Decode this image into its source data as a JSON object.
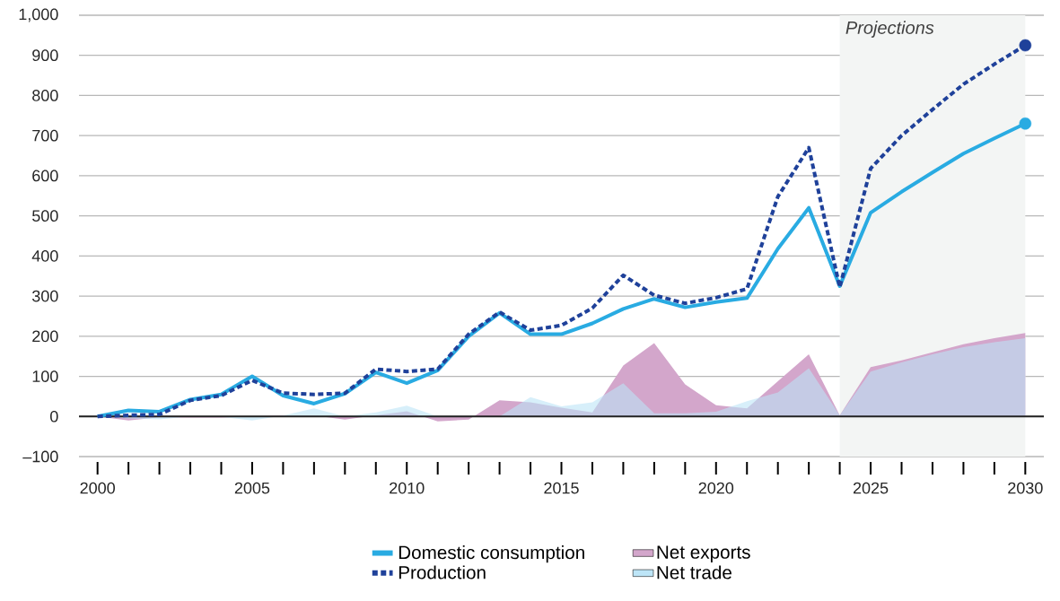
{
  "chart_data": {
    "type": "line",
    "x": [
      2000,
      2001,
      2002,
      2003,
      2004,
      2005,
      2006,
      2007,
      2008,
      2009,
      2010,
      2011,
      2012,
      2013,
      2014,
      2015,
      2016,
      2017,
      2018,
      2019,
      2020,
      2021,
      2022,
      2023,
      2024,
      2025,
      2026,
      2027,
      2028,
      2029,
      2030
    ],
    "series": [
      {
        "name": "Domestic consumption",
        "color": "#29abe2",
        "line_style": "solid",
        "values": [
          0,
          15,
          12,
          42,
          55,
          100,
          52,
          32,
          57,
          110,
          83,
          115,
          200,
          258,
          205,
          205,
          232,
          268,
          293,
          272,
          285,
          295,
          418,
          520,
          325,
          508,
          560,
          608,
          655,
          693,
          730
        ]
      },
      {
        "name": "Production",
        "color": "#1f419a",
        "line_style": "dashed",
        "values": [
          0,
          3,
          5,
          40,
          52,
          90,
          58,
          55,
          58,
          118,
          112,
          118,
          205,
          260,
          215,
          227,
          270,
          352,
          302,
          282,
          296,
          318,
          548,
          670,
          322,
          618,
          700,
          765,
          828,
          878,
          925
        ]
      },
      {
        "name": "Net exports",
        "type": "area",
        "color": "#d3a6cb",
        "values": [
          0,
          -10,
          -2,
          -3,
          -3,
          0,
          2,
          2,
          -8,
          3,
          13,
          -12,
          -8,
          40,
          35,
          22,
          10,
          127,
          183,
          80,
          28,
          20,
          88,
          155,
          3,
          123,
          140,
          160,
          180,
          195,
          208
        ]
      },
      {
        "name": "Net trade",
        "type": "area",
        "color": "#bde5f7",
        "values": [
          0,
          -5,
          -7,
          0,
          -1,
          -10,
          2,
          20,
          0,
          10,
          27,
          0,
          0,
          0,
          48,
          25,
          35,
          83,
          8,
          8,
          12,
          38,
          60,
          120,
          3,
          112,
          135,
          155,
          173,
          185,
          195
        ]
      },
      {
        "type": "scatter",
        "marker": "circle",
        "color": "#29abe2",
        "x": [
          2030
        ],
        "values": [
          730
        ]
      },
      {
        "type": "scatter",
        "marker": "circle",
        "color": "#1f419a",
        "x": [
          2030
        ],
        "values": [
          925
        ]
      }
    ],
    "xlim": [
      1999.4,
      2030.6
    ],
    "xticks": [
      2000,
      {
        "value": 2001,
        "label": null
      },
      {
        "value": 2002,
        "label": null
      },
      {
        "value": 2003,
        "label": null
      },
      {
        "value": 2004,
        "label": null
      },
      2005,
      {
        "value": 2006,
        "label": null
      },
      {
        "value": 2007,
        "label": null
      },
      {
        "value": 2008,
        "label": null
      },
      {
        "value": 2009,
        "label": null
      },
      2010,
      {
        "value": 2011,
        "label": null
      },
      {
        "value": 2012,
        "label": null
      },
      {
        "value": 2013,
        "label": null
      },
      {
        "value": 2014,
        "label": null
      },
      2015,
      {
        "value": 2016,
        "label": null
      },
      {
        "value": 2017,
        "label": null
      },
      {
        "value": 2018,
        "label": null
      },
      {
        "value": 2019,
        "label": null
      },
      2020,
      {
        "value": 2021,
        "label": null
      },
      {
        "value": 2022,
        "label": null
      },
      {
        "value": 2023,
        "label": null
      },
      {
        "value": 2024,
        "label": null
      },
      2025,
      {
        "value": 2026,
        "label": null
      },
      {
        "value": 2027,
        "label": null
      },
      {
        "value": 2028,
        "label": null
      },
      {
        "value": 2029,
        "label": null
      },
      2030
    ],
    "ylim": [
      -100,
      1000
    ],
    "yticks": [
      {
        "value": -100,
        "label": "–100"
      },
      0,
      100,
      200,
      300,
      400,
      500,
      600,
      700,
      800,
      900,
      {
        "value": 1000,
        "label": "1,000"
      }
    ],
    "grid": "y",
    "legend": "bottom",
    "ref_lines": [
      {
        "axis": "y",
        "value": 0,
        "color": "#222222"
      }
    ],
    "bands": [
      {
        "axis": "x",
        "from": 2024,
        "to": 2030,
        "label": "Projections",
        "color": "#f3f5f4"
      }
    ]
  }
}
